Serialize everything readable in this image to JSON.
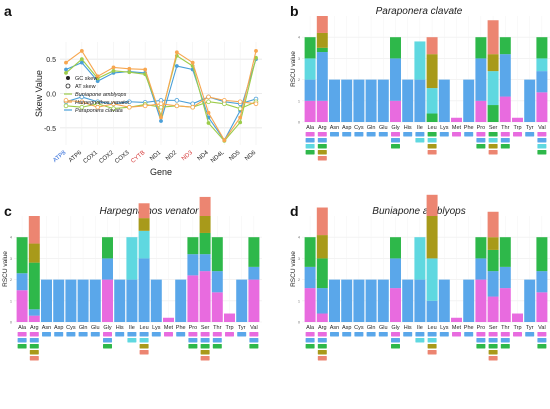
{
  "panels": {
    "a": {
      "letter": "a"
    },
    "b": {
      "letter": "b",
      "title": "Paraponera clavate"
    },
    "c": {
      "letter": "c",
      "title": "Harpegnathos venator"
    },
    "d": {
      "letter": "d",
      "title": "Buniapone amblyops"
    }
  },
  "colors": {
    "blue_species": "#4a9fd8",
    "green_species": "#9ccc4a",
    "orange_species": "#f7a64f",
    "codon_blue": "#5aa7ea",
    "codon_pink": "#e86bdf",
    "codon_green": "#2eb84a",
    "codon_cyan": "#5fd8e0",
    "codon_olive": "#a89a1a",
    "codon_salmon": "#ec8571"
  },
  "chart_data": [
    {
      "type": "line",
      "panel": "a",
      "xlabel": "Gene",
      "ylabel": "Skew Value",
      "ylim": [
        -0.75,
        0.75
      ],
      "yticks": [
        0.5,
        0.0,
        -0.5
      ],
      "grid": true,
      "categories": [
        "ATP8",
        "ATP6",
        "COX1",
        "COX2",
        "COX3",
        "CYTB",
        "ND1",
        "ND2",
        "ND3",
        "ND4",
        "ND4L",
        "ND5",
        "ND6"
      ],
      "category_colors": [
        "#1f5fd6",
        "#222",
        "#222",
        "#222",
        "#222",
        "#d63a3a",
        "#222",
        "#222",
        "#d63a3a",
        "#222",
        "#222",
        "#222",
        "#222"
      ],
      "legend": {
        "placement": "bottom-left",
        "markers": [
          {
            "label": "GC skew",
            "symbol": "filled"
          },
          {
            "label": "AT skew",
            "symbol": "open"
          }
        ],
        "series": [
          "Buniapone amblyops",
          "Harpegnathos venator",
          "Paraponera clavata"
        ]
      },
      "series": [
        {
          "name": "Buniapone amblyops",
          "skew": "GC",
          "color": "#4a9fd8",
          "values": [
            0.35,
            0.45,
            0.18,
            0.3,
            0.32,
            0.3,
            -0.4,
            0.4,
            0.35,
            -0.35,
            -0.68,
            -0.25,
            0.5
          ]
        },
        {
          "name": "Buniapone amblyops",
          "skew": "AT",
          "color": "#4a9fd8",
          "values": [
            -0.12,
            -0.05,
            -0.12,
            -0.15,
            -0.12,
            -0.13,
            -0.1,
            -0.1,
            -0.15,
            -0.05,
            -0.12,
            -0.15,
            -0.08
          ]
        },
        {
          "name": "Harpegnathos venator",
          "skew": "GC",
          "color": "#9ccc4a",
          "values": [
            0.3,
            0.5,
            0.22,
            0.33,
            0.31,
            0.28,
            -0.32,
            0.55,
            0.4,
            -0.43,
            -0.69,
            -0.42,
            0.52
          ]
        },
        {
          "name": "Harpegnathos venator",
          "skew": "AT",
          "color": "#9ccc4a",
          "values": [
            -0.18,
            -0.2,
            -0.15,
            -0.22,
            -0.2,
            -0.16,
            -0.2,
            -0.18,
            -0.2,
            -0.12,
            -0.15,
            -0.22,
            -0.12
          ]
        },
        {
          "name": "Paraponera clavata",
          "skew": "GC",
          "color": "#f7a64f",
          "values": [
            0.45,
            0.62,
            0.25,
            0.38,
            0.36,
            0.35,
            -0.35,
            0.6,
            0.45,
            -0.28,
            -0.68,
            -0.35,
            0.62
          ]
        },
        {
          "name": "Paraponera clavata",
          "skew": "AT",
          "color": "#f7a64f",
          "values": [
            -0.1,
            -0.12,
            -0.2,
            -0.15,
            -0.2,
            -0.18,
            -0.15,
            -0.18,
            -0.2,
            -0.05,
            -0.1,
            -0.12,
            -0.15
          ]
        }
      ]
    },
    {
      "type": "bar",
      "panel": "b",
      "title": "Paraponera clavate",
      "ylabel": "RSCU value",
      "ylim": [
        0,
        5
      ],
      "yticks": [
        0,
        1,
        2,
        3,
        4
      ],
      "categories": [
        "Ala",
        "Arg",
        "Asn",
        "Asp",
        "Cys",
        "Gln",
        "Glu",
        "Gly",
        "His",
        "Ile",
        "Leu",
        "Lys",
        "Met",
        "Phe",
        "Pro",
        "Ser",
        "Thr",
        "Trp",
        "Tyr",
        "Val"
      ],
      "stacks": [
        [
          {
            "c": "#e86bdf",
            "v": 1.0
          },
          {
            "c": "#5aa7ea",
            "v": 1.0
          },
          {
            "c": "#5fd8e0",
            "v": 1.0
          },
          {
            "c": "#2eb84a",
            "v": 1.0
          }
        ],
        [
          {
            "c": "#e86bdf",
            "v": 1.0
          },
          {
            "c": "#5aa7ea",
            "v": 2.3
          },
          {
            "c": "#2eb84a",
            "v": 0.2
          },
          {
            "c": "#a89a1a",
            "v": 0.7
          },
          {
            "c": "#ec8571",
            "v": 0.8
          }
        ],
        [
          {
            "c": "#5aa7ea",
            "v": 2.0
          }
        ],
        [
          {
            "c": "#5aa7ea",
            "v": 2.0
          }
        ],
        [
          {
            "c": "#5aa7ea",
            "v": 2.0
          }
        ],
        [
          {
            "c": "#5aa7ea",
            "v": 2.0
          }
        ],
        [
          {
            "c": "#5aa7ea",
            "v": 2.0
          }
        ],
        [
          {
            "c": "#e86bdf",
            "v": 1.0
          },
          {
            "c": "#5aa7ea",
            "v": 2.0
          },
          {
            "c": "#2eb84a",
            "v": 1.0
          }
        ],
        [
          {
            "c": "#5aa7ea",
            "v": 2.0
          }
        ],
        [
          {
            "c": "#5aa7ea",
            "v": 2.0
          },
          {
            "c": "#5fd8e0",
            "v": 1.8
          }
        ],
        [
          {
            "c": "#2eb84a",
            "v": 0.4
          },
          {
            "c": "#5fd8e0",
            "v": 1.2
          },
          {
            "c": "#a89a1a",
            "v": 1.6
          },
          {
            "c": "#ec8571",
            "v": 0.8
          }
        ],
        [
          {
            "c": "#5aa7ea",
            "v": 2.0
          }
        ],
        [
          {
            "c": "#e86bdf",
            "v": 0.2
          }
        ],
        [
          {
            "c": "#5aa7ea",
            "v": 2.0
          }
        ],
        [
          {
            "c": "#e86bdf",
            "v": 1.0
          },
          {
            "c": "#5aa7ea",
            "v": 2.0
          },
          {
            "c": "#2eb84a",
            "v": 1.0
          }
        ],
        [
          {
            "c": "#2eb84a",
            "v": 0.8
          },
          {
            "c": "#5fd8e0",
            "v": 1.6
          },
          {
            "c": "#a89a1a",
            "v": 0.8
          },
          {
            "c": "#ec8571",
            "v": 1.6
          }
        ],
        [
          {
            "c": "#e86bdf",
            "v": 1.2
          },
          {
            "c": "#5aa7ea",
            "v": 2.0
          },
          {
            "c": "#2eb84a",
            "v": 0.8
          }
        ],
        [
          {
            "c": "#e86bdf",
            "v": 0.2
          }
        ],
        [
          {
            "c": "#5aa7ea",
            "v": 2.0
          }
        ],
        [
          {
            "c": "#e86bdf",
            "v": 1.4
          },
          {
            "c": "#5aa7ea",
            "v": 1.0
          },
          {
            "c": "#5fd8e0",
            "v": 0.6
          },
          {
            "c": "#2eb84a",
            "v": 1.0
          }
        ]
      ]
    },
    {
      "type": "bar",
      "panel": "c",
      "title": "Harpegnathos venator",
      "ylabel": "RSCU value",
      "ylim": [
        0,
        5
      ],
      "yticks": [
        0,
        1,
        2,
        3,
        4
      ],
      "categories": [
        "Ala",
        "Arg",
        "Asn",
        "Asp",
        "Cys",
        "Gln",
        "Glu",
        "Gly",
        "His",
        "Ile",
        "Leu",
        "Lys",
        "Met",
        "Phe",
        "Pro",
        "Ser",
        "Thr",
        "Trp",
        "Tyr",
        "Val"
      ],
      "stacks": [
        [
          {
            "c": "#e86bdf",
            "v": 1.5
          },
          {
            "c": "#5aa7ea",
            "v": 0.8
          },
          {
            "c": "#2eb84a",
            "v": 1.7
          }
        ],
        [
          {
            "c": "#e86bdf",
            "v": 0.3
          },
          {
            "c": "#5aa7ea",
            "v": 0.3
          },
          {
            "c": "#2eb84a",
            "v": 2.2
          },
          {
            "c": "#a89a1a",
            "v": 0.9
          },
          {
            "c": "#ec8571",
            "v": 1.3
          }
        ],
        [
          {
            "c": "#5aa7ea",
            "v": 2.0
          }
        ],
        [
          {
            "c": "#5aa7ea",
            "v": 2.0
          }
        ],
        [
          {
            "c": "#5aa7ea",
            "v": 2.0
          }
        ],
        [
          {
            "c": "#5aa7ea",
            "v": 2.0
          }
        ],
        [
          {
            "c": "#5aa7ea",
            "v": 2.0
          }
        ],
        [
          {
            "c": "#e86bdf",
            "v": 2.0
          },
          {
            "c": "#5aa7ea",
            "v": 1.0
          },
          {
            "c": "#2eb84a",
            "v": 1.0
          }
        ],
        [
          {
            "c": "#5aa7ea",
            "v": 2.0
          }
        ],
        [
          {
            "c": "#5aa7ea",
            "v": 2.0
          },
          {
            "c": "#5fd8e0",
            "v": 2.0
          }
        ],
        [
          {
            "c": "#5aa7ea",
            "v": 3.0
          },
          {
            "c": "#5fd8e0",
            "v": 1.3
          },
          {
            "c": "#a89a1a",
            "v": 0.6
          },
          {
            "c": "#ec8571",
            "v": 0.7
          }
        ],
        [
          {
            "c": "#5aa7ea",
            "v": 2.0
          }
        ],
        [
          {
            "c": "#e86bdf",
            "v": 0.2
          }
        ],
        [
          {
            "c": "#5aa7ea",
            "v": 2.0
          }
        ],
        [
          {
            "c": "#e86bdf",
            "v": 2.2
          },
          {
            "c": "#5aa7ea",
            "v": 1.0
          },
          {
            "c": "#2eb84a",
            "v": 0.8
          }
        ],
        [
          {
            "c": "#e86bdf",
            "v": 2.4
          },
          {
            "c": "#5aa7ea",
            "v": 0.8
          },
          {
            "c": "#2eb84a",
            "v": 1.0
          },
          {
            "c": "#a89a1a",
            "v": 0.8
          },
          {
            "c": "#ec8571",
            "v": 0.9
          }
        ],
        [
          {
            "c": "#e86bdf",
            "v": 1.4
          },
          {
            "c": "#5aa7ea",
            "v": 1.0
          },
          {
            "c": "#2eb84a",
            "v": 1.6
          }
        ],
        [
          {
            "c": "#e86bdf",
            "v": 0.4
          }
        ],
        [
          {
            "c": "#5aa7ea",
            "v": 2.0
          }
        ],
        [
          {
            "c": "#e86bdf",
            "v": 2.0
          },
          {
            "c": "#5aa7ea",
            "v": 0.6
          },
          {
            "c": "#2eb84a",
            "v": 1.4
          }
        ]
      ]
    },
    {
      "type": "bar",
      "panel": "d",
      "title": "Buniapone amblyops",
      "ylabel": "RSCU value",
      "ylim": [
        0,
        5
      ],
      "yticks": [
        0,
        1,
        2,
        3,
        4
      ],
      "categories": [
        "Ala",
        "Arg",
        "Asn",
        "Asp",
        "Cys",
        "Gln",
        "Glu",
        "Gly",
        "His",
        "Ile",
        "Leu",
        "Lys",
        "Met",
        "Phe",
        "Pro",
        "Ser",
        "Thr",
        "Trp",
        "Tyr",
        "Val"
      ],
      "stacks": [
        [
          {
            "c": "#e86bdf",
            "v": 1.6
          },
          {
            "c": "#5aa7ea",
            "v": 1.0
          },
          {
            "c": "#2eb84a",
            "v": 1.4
          }
        ],
        [
          {
            "c": "#e86bdf",
            "v": 0.4
          },
          {
            "c": "#5aa7ea",
            "v": 1.2
          },
          {
            "c": "#2eb84a",
            "v": 1.4
          },
          {
            "c": "#a89a1a",
            "v": 1.1
          },
          {
            "c": "#ec8571",
            "v": 1.3
          }
        ],
        [
          {
            "c": "#5aa7ea",
            "v": 2.0
          }
        ],
        [
          {
            "c": "#5aa7ea",
            "v": 2.0
          }
        ],
        [
          {
            "c": "#5aa7ea",
            "v": 2.0
          }
        ],
        [
          {
            "c": "#5aa7ea",
            "v": 2.0
          }
        ],
        [
          {
            "c": "#5aa7ea",
            "v": 2.0
          }
        ],
        [
          {
            "c": "#e86bdf",
            "v": 1.6
          },
          {
            "c": "#5aa7ea",
            "v": 1.4
          },
          {
            "c": "#2eb84a",
            "v": 1.0
          }
        ],
        [
          {
            "c": "#5aa7ea",
            "v": 2.0
          }
        ],
        [
          {
            "c": "#5aa7ea",
            "v": 2.0
          },
          {
            "c": "#5fd8e0",
            "v": 2.0
          }
        ],
        [
          {
            "c": "#5aa7ea",
            "v": 1.0
          },
          {
            "c": "#5fd8e0",
            "v": 2.0
          },
          {
            "c": "#a89a1a",
            "v": 2.0
          },
          {
            "c": "#ec8571",
            "v": 1.0
          }
        ],
        [
          {
            "c": "#5aa7ea",
            "v": 2.0
          }
        ],
        [
          {
            "c": "#e86bdf",
            "v": 0.2
          }
        ],
        [
          {
            "c": "#5aa7ea",
            "v": 2.0
          }
        ],
        [
          {
            "c": "#e86bdf",
            "v": 2.0
          },
          {
            "c": "#5aa7ea",
            "v": 1.0
          },
          {
            "c": "#2eb84a",
            "v": 1.0
          }
        ],
        [
          {
            "c": "#e86bdf",
            "v": 1.2
          },
          {
            "c": "#5aa7ea",
            "v": 1.2
          },
          {
            "c": "#2eb84a",
            "v": 1.0
          },
          {
            "c": "#a89a1a",
            "v": 0.6
          },
          {
            "c": "#ec8571",
            "v": 1.2
          }
        ],
        [
          {
            "c": "#e86bdf",
            "v": 1.6
          },
          {
            "c": "#5aa7ea",
            "v": 1.0
          },
          {
            "c": "#2eb84a",
            "v": 1.4
          }
        ],
        [
          {
            "c": "#e86bdf",
            "v": 0.4
          }
        ],
        [
          {
            "c": "#5aa7ea",
            "v": 2.0
          }
        ],
        [
          {
            "c": "#e86bdf",
            "v": 1.4
          },
          {
            "c": "#5aa7ea",
            "v": 1.0
          },
          {
            "c": "#2eb84a",
            "v": 1.6
          }
        ]
      ]
    }
  ]
}
